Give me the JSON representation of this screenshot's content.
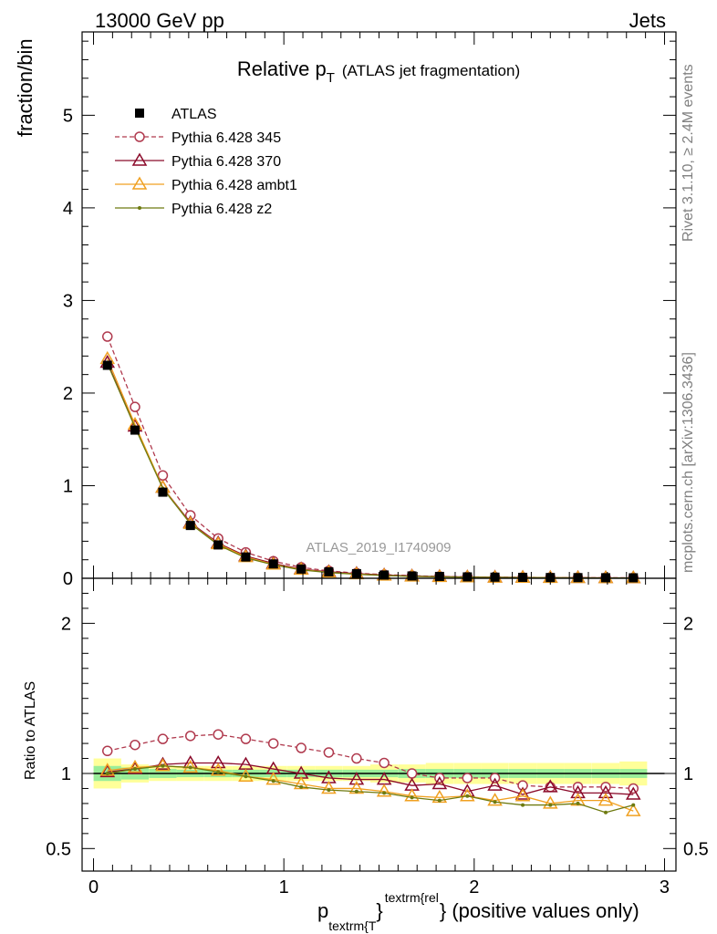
{
  "header": {
    "energy_label": "13000 GeV pp",
    "category_label": "Jets"
  },
  "side_labels": {
    "rivet": "Rivet 3.1.10, ≥ 2.4M events",
    "mcplots": "mcplots.cern.ch [arXiv:1306.3436]"
  },
  "watermark": "ATLAS_2019_I1740909",
  "chart_data": [
    {
      "type": "line",
      "title": "Relative p",
      "title_subscript": "T",
      "title_suffix": "(ATLAS jet fragmentation)",
      "ylabel": "fraction/bin",
      "ylim": [
        0,
        5.9
      ],
      "yticks": [
        0,
        1,
        2,
        3,
        4,
        5
      ],
      "xlim": [
        -0.06,
        3.06
      ],
      "legend_position": "top-left",
      "x": [
        0.073,
        0.218,
        0.364,
        0.509,
        0.655,
        0.8,
        0.945,
        1.091,
        1.236,
        1.382,
        1.527,
        1.673,
        1.818,
        1.964,
        2.109,
        2.255,
        2.4,
        2.545,
        2.691,
        2.836
      ],
      "data": {
        "name": "ATLAS",
        "values": [
          2.3,
          1.6,
          0.93,
          0.57,
          0.36,
          0.23,
          0.155,
          0.1,
          0.07,
          0.05,
          0.035,
          0.025,
          0.02,
          0.015,
          0.012,
          0.01,
          0.008,
          0.007,
          0.006,
          0.005
        ]
      },
      "series": [
        {
          "name": "Pythia 6.428 345",
          "color": "#b03a4e",
          "style": "dashed",
          "marker": "open-circle",
          "values": [
            2.61,
            1.85,
            1.11,
            0.68,
            0.43,
            0.28,
            0.185,
            0.118,
            0.08,
            0.055,
            0.04,
            0.028,
            0.02,
            0.016,
            0.012,
            0.01,
            0.008,
            0.007,
            0.006,
            0.005
          ]
        },
        {
          "name": "Pythia 6.428 370",
          "color": "#8b0a2a",
          "style": "solid",
          "marker": "open-triangle",
          "values": [
            2.33,
            1.64,
            0.98,
            0.6,
            0.38,
            0.24,
            0.16,
            0.1,
            0.07,
            0.05,
            0.035,
            0.024,
            0.018,
            0.014,
            0.011,
            0.009,
            0.007,
            0.006,
            0.005,
            0.004
          ]
        },
        {
          "name": "Pythia 6.428 ambt1",
          "color": "#f0a020",
          "style": "solid",
          "marker": "open-triangle",
          "values": [
            2.37,
            1.66,
            0.98,
            0.59,
            0.37,
            0.23,
            0.15,
            0.095,
            0.064,
            0.045,
            0.031,
            0.021,
            0.016,
            0.012,
            0.009,
            0.008,
            0.006,
            0.005,
            0.004,
            0.004
          ]
        },
        {
          "name": "Pythia 6.428 z2",
          "color": "#6e7a10",
          "style": "solid",
          "marker": "dot",
          "values": [
            2.32,
            1.63,
            0.97,
            0.59,
            0.36,
            0.22,
            0.145,
            0.09,
            0.062,
            0.043,
            0.03,
            0.021,
            0.016,
            0.012,
            0.009,
            0.007,
            0.006,
            0.005,
            0.004,
            0.003
          ]
        }
      ]
    },
    {
      "type": "line",
      "ylabel": "Ratio to ATLAS",
      "xlabel_main": "p",
      "xlabel_sub": "textrm{T",
      "xlabel_sup": "textrm{rel",
      "xlabel_suffix": "} (positive values only)",
      "ylim": [
        0.35,
        2.3
      ],
      "yticks": [
        0.5,
        1,
        2
      ],
      "ytick_labels": [
        "0.5",
        "1",
        "2"
      ],
      "xlim": [
        -0.06,
        3.06
      ],
      "xticks": [
        0,
        1,
        2,
        3
      ],
      "xtick_labels": [
        "0",
        "1",
        "2",
        "3"
      ],
      "x": [
        0.073,
        0.218,
        0.364,
        0.509,
        0.655,
        0.8,
        0.945,
        1.091,
        1.236,
        1.382,
        1.527,
        1.673,
        1.818,
        1.964,
        2.109,
        2.255,
        2.4,
        2.545,
        2.691,
        2.836
      ],
      "band_inner": [
        0.05,
        0.04,
        0.03,
        0.025,
        0.025,
        0.025,
        0.025,
        0.025,
        0.025,
        0.025,
        0.025,
        0.03,
        0.03,
        0.03,
        0.03,
        0.03,
        0.03,
        0.03,
        0.03,
        0.03
      ],
      "band_outer": [
        0.1,
        0.06,
        0.05,
        0.05,
        0.05,
        0.05,
        0.05,
        0.05,
        0.05,
        0.05,
        0.06,
        0.06,
        0.07,
        0.07,
        0.07,
        0.07,
        0.07,
        0.07,
        0.07,
        0.08
      ],
      "series": [
        {
          "name": "Pythia 6.428 345",
          "color": "#b03a4e",
          "style": "dashed",
          "marker": "open-circle",
          "values": [
            1.15,
            1.19,
            1.23,
            1.25,
            1.26,
            1.23,
            1.2,
            1.17,
            1.14,
            1.1,
            1.07,
            1.0,
            0.97,
            0.97,
            0.97,
            0.92,
            0.91,
            0.91,
            0.91,
            0.9
          ]
        },
        {
          "name": "Pythia 6.428 370",
          "color": "#8b0a2a",
          "style": "solid",
          "marker": "open-triangle",
          "values": [
            1.01,
            1.03,
            1.06,
            1.07,
            1.07,
            1.06,
            1.03,
            1.0,
            0.97,
            0.96,
            0.96,
            0.92,
            0.93,
            0.88,
            0.92,
            0.86,
            0.91,
            0.87,
            0.87,
            0.86
          ]
        },
        {
          "name": "Pythia 6.428 ambt1",
          "color": "#f0a020",
          "style": "solid",
          "marker": "open-triangle",
          "values": [
            1.02,
            1.04,
            1.05,
            1.04,
            1.02,
            0.98,
            0.96,
            0.93,
            0.9,
            0.9,
            0.88,
            0.85,
            0.84,
            0.85,
            0.82,
            0.85,
            0.8,
            0.82,
            0.82,
            0.75
          ]
        },
        {
          "name": "Pythia 6.428 z2",
          "color": "#6e7a10",
          "style": "solid",
          "marker": "dot",
          "values": [
            1.0,
            1.03,
            1.05,
            1.04,
            1.01,
            0.98,
            0.95,
            0.91,
            0.89,
            0.88,
            0.87,
            0.84,
            0.82,
            0.85,
            0.81,
            0.79,
            0.79,
            0.8,
            0.74,
            0.79
          ]
        }
      ]
    }
  ]
}
